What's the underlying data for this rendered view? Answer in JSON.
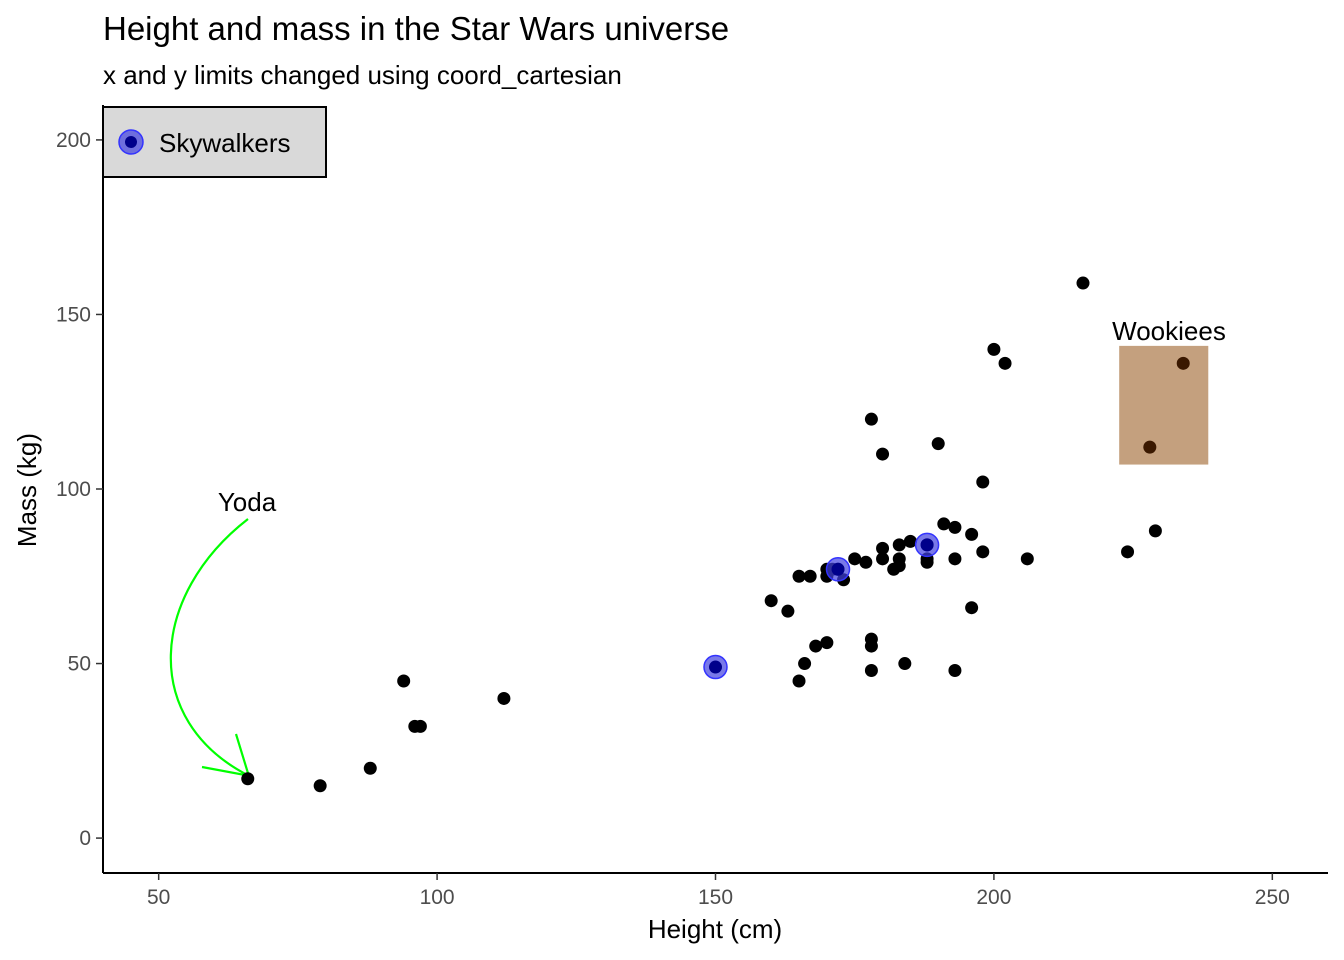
{
  "chart_data": {
    "type": "scatter",
    "title": "Height and mass in the Star Wars universe",
    "subtitle": "x and y limits changed using coord_cartesian",
    "xlabel": "Height (cm)",
    "ylabel": "Mass (kg)",
    "xlim": [
      40,
      260
    ],
    "ylim": [
      -10,
      210
    ],
    "xticks": [
      50,
      100,
      150,
      200,
      250
    ],
    "yticks": [
      0,
      50,
      100,
      150,
      200
    ],
    "grid": false,
    "legend": {
      "position": "top-left",
      "entries": [
        "Skywalkers"
      ]
    },
    "colors": {
      "points": "#000000",
      "highlight_fill": "#4040e0",
      "highlight_core": "#00008b",
      "highlight_border": "#3333ff",
      "annotation_rect": "#c4a07e",
      "wookiee_points": "#3a1800",
      "arrow": "#00ff00",
      "legend_bg": "#d9d9d9"
    },
    "points": [
      [
        66,
        17
      ],
      [
        79,
        15
      ],
      [
        88,
        20
      ],
      [
        94,
        45
      ],
      [
        96,
        32
      ],
      [
        97,
        32
      ],
      [
        112,
        40
      ],
      [
        160,
        68
      ],
      [
        163,
        65
      ],
      [
        165,
        75
      ],
      [
        165,
        45
      ],
      [
        166,
        50
      ],
      [
        167,
        75
      ],
      [
        168,
        55
      ],
      [
        170,
        77
      ],
      [
        170,
        75
      ],
      [
        170,
        56
      ],
      [
        171,
        77
      ],
      [
        172,
        77
      ],
      [
        173,
        74
      ],
      [
        175,
        80
      ],
      [
        177,
        79
      ],
      [
        178,
        120
      ],
      [
        178,
        57
      ],
      [
        178,
        55
      ],
      [
        178,
        48
      ],
      [
        180,
        110
      ],
      [
        180,
        83
      ],
      [
        180,
        80
      ],
      [
        182,
        77
      ],
      [
        183,
        80
      ],
      [
        183,
        84
      ],
      [
        183,
        78
      ],
      [
        184,
        50
      ],
      [
        185,
        85
      ],
      [
        188,
        84
      ],
      [
        188,
        80
      ],
      [
        188,
        79
      ],
      [
        190,
        113
      ],
      [
        191,
        90
      ],
      [
        193,
        89
      ],
      [
        193,
        80
      ],
      [
        193,
        48
      ],
      [
        196,
        87
      ],
      [
        196,
        66
      ],
      [
        198,
        102
      ],
      [
        198,
        82
      ],
      [
        200,
        140
      ],
      [
        202,
        136
      ],
      [
        206,
        80
      ],
      [
        216,
        159
      ],
      [
        224,
        82
      ],
      [
        229,
        88
      ]
    ],
    "wookiees": [
      [
        228,
        112
      ],
      [
        234,
        136
      ]
    ],
    "skywalkers": [
      [
        150,
        49
      ],
      [
        172,
        77
      ],
      [
        188,
        84
      ]
    ],
    "annotations": {
      "yoda": {
        "label": "Yoda",
        "x": 66,
        "y": 17
      },
      "wookiees": {
        "label": "Wookiees",
        "xmin": 222.5,
        "xmax": 238.5,
        "ymin": 107,
        "ymax": 141
      }
    }
  }
}
